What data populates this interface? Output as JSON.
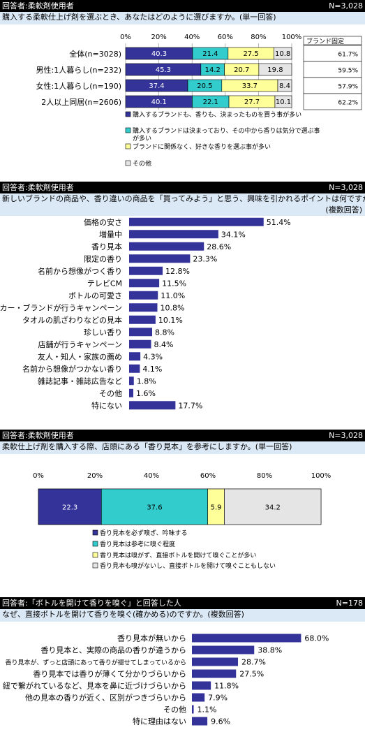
{
  "sections": [
    {
      "respondent": "回答者:柔軟剤使用者",
      "n": "N=3,028",
      "question": "購入する柔軟仕上げ剤を選ぶとき、あなたはどのように選びますか。(単一回答)"
    },
    {
      "respondent": "回答者:柔軟剤使用者",
      "n": "N=3,028",
      "question": "新しいブランドの商品や、香り違いの商品を「買ってみよう」と思う、興味を引かれるポイントは何ですか。",
      "note": "(複数回答)"
    },
    {
      "respondent": "回答者:柔軟剤使用者",
      "n": "N=3,028",
      "question": "柔軟仕上げ剤を購入する際、店頭にある「香り見本」を参考にしますか。(単一回答)"
    },
    {
      "respondent": "回答者:「ボトルを開けて香りを嗅ぐ」と回答した人",
      "n": "N=178",
      "question": "なぜ、直接ボトルを開けて香りを嗅ぐ(確かめる)のですか。(複数回答)"
    }
  ],
  "chart_data": [
    {
      "type": "bar",
      "orientation": "horizontal",
      "stacked": true,
      "percent": true,
      "categories": [
        "全体(n=3028)",
        "男性:1人暮らし(n=232)",
        "女性:1人暮らし(n=190)",
        "2人以上同居(n=2606)"
      ],
      "series": [
        {
          "name": "購入するブランドも、香りも、決まったものを買う事が多い",
          "color": "#333399",
          "values": [
            40.3,
            45.3,
            37.4,
            40.1
          ]
        },
        {
          "name": "購入するブランドは決まっており、その中から香りは気分で選ぶ事が多い",
          "color": "#33cccc",
          "values": [
            21.4,
            14.2,
            20.5,
            22.1
          ]
        },
        {
          "name": "ブランドに関係なく、好きな香りを選ぶ事が多い",
          "color": "#ffff99",
          "values": [
            27.5,
            20.7,
            33.7,
            27.7
          ]
        },
        {
          "name": "その他",
          "color": "#e5e5e5",
          "values": [
            10.8,
            19.8,
            8.4,
            10.1
          ]
        }
      ],
      "ticks": [
        "0%",
        "20%",
        "40%",
        "60%",
        "80%",
        "100%"
      ],
      "side_column": {
        "title": "ブランド固定",
        "values": [
          "61.7%",
          "59.5%",
          "57.9%",
          "62.2%"
        ]
      },
      "xlim": [
        0,
        100
      ]
    },
    {
      "type": "bar",
      "orientation": "horizontal",
      "categories": [
        "価格の安さ",
        "増量中",
        "香り見本",
        "限定の香り",
        "名前から想像がつく香り",
        "テレビCM",
        "ボトルの可愛さ",
        "メーカー・ブランドが行うキャンペーン",
        "タオルの肌ざわりなどの見本",
        "珍しい香り",
        "店舗が行うキャンペーン",
        "友人・知人・家族の薦め",
        "名前から想像がつかない香り",
        "雑誌記事・雑誌広告など",
        "その他",
        "特にない"
      ],
      "values": [
        51.4,
        34.1,
        28.6,
        23.3,
        12.8,
        11.5,
        11.0,
        10.8,
        10.1,
        8.8,
        8.4,
        4.3,
        4.1,
        1.8,
        1.6,
        17.7
      ],
      "labels": [
        "51.4%",
        "34.1%",
        "28.6%",
        "23.3%",
        "12.8%",
        "11.5%",
        "11.0%",
        "10.8%",
        "10.1%",
        "8.8%",
        "8.4%",
        "4.3%",
        "4.1%",
        "1.8%",
        "1.6%",
        "17.7%"
      ],
      "color": "#333399"
    },
    {
      "type": "bar",
      "orientation": "horizontal",
      "stacked": true,
      "percent": true,
      "categories": [
        ""
      ],
      "series": [
        {
          "name": "香り見本を必ず嗅ぎ、吟味する",
          "color": "#333399",
          "values": [
            22.3
          ]
        },
        {
          "name": "香り見本は参考に嗅ぐ程度",
          "color": "#33cccc",
          "values": [
            37.6
          ]
        },
        {
          "name": "香り見本は嗅がず、直接ボトルを開けて嗅ぐことが多い",
          "color": "#ffff99",
          "values": [
            5.9
          ]
        },
        {
          "name": "香り見本も嗅がないし、直接ボトルを開けて嗅ぐこともしない",
          "color": "#e5e5e5",
          "values": [
            34.2
          ]
        }
      ],
      "ticks": [
        "0%",
        "20%",
        "40%",
        "60%",
        "80%",
        "100%"
      ],
      "xlim": [
        0,
        100
      ]
    },
    {
      "type": "bar",
      "orientation": "horizontal",
      "categories": [
        "香り見本が無いから",
        "香り見本と、実際の商品の香りが違うから",
        "香り見本が、ずっと店頭にあって香りが褪せてしまっているから",
        "香り見本では香りが薄くて分かりづらいから",
        "紐で繋がれているなど、見本を鼻に近づけづらいから",
        "他の見本の香りが近く、区別がつきづらいから",
        "その他",
        "特に理由はない"
      ],
      "values": [
        68.0,
        38.8,
        28.7,
        27.5,
        11.8,
        7.9,
        1.1,
        9.6
      ],
      "labels": [
        "68.0%",
        "38.8%",
        "28.7%",
        "27.5%",
        "11.8%",
        "7.9%",
        "1.1%",
        "9.6%"
      ],
      "color": "#333399"
    }
  ]
}
